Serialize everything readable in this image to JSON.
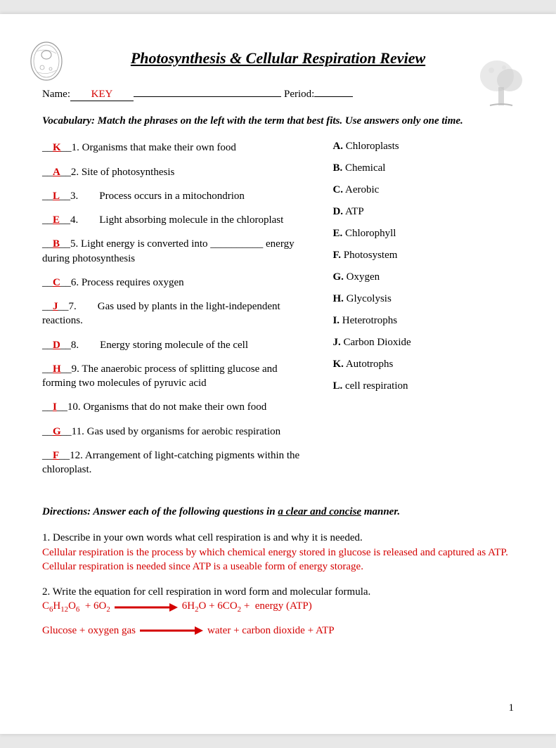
{
  "title": "Photosynthesis & Cellular Respiration Review",
  "header": {
    "name_label": "Name:",
    "key_text": "KEY",
    "period_label": "Period:"
  },
  "vocab_instructions": "Vocabulary: Match the phrases on the left with the term that best fits. Use answers only one time.",
  "questions": [
    {
      "ans": "K",
      "num": "1.",
      "text": "Organisms that make their own food"
    },
    {
      "ans": "A",
      "num": "2.",
      "text": "Site of photosynthesis"
    },
    {
      "ans": "L",
      "num": "3.",
      "text": "Process occurs in a mitochondrion",
      "indent": true
    },
    {
      "ans": "E",
      "num": "4.",
      "text": "Light absorbing molecule in the chloroplast",
      "indent": true
    },
    {
      "ans": "B",
      "num": "5.",
      "text": "Light energy is converted into __________ energy during photosynthesis"
    },
    {
      "ans": "C",
      "num": "6.",
      "text": "Process requires oxygen"
    },
    {
      "ans": "J",
      "num": "7.",
      "text": "Gas used by plants in the light-independent reactions.",
      "indent": true
    },
    {
      "ans": "D",
      "num": "8.",
      "text": "Energy storing molecule of the cell",
      "indent": true
    },
    {
      "ans": "H",
      "num": "9.",
      "text": "The anaerobic process of splitting glucose and forming two molecules of pyruvic acid"
    },
    {
      "ans": "I",
      "num": "10.",
      "text": "Organisms that do not make their own food"
    },
    {
      "ans": "G",
      "num": "11.",
      "text": "Gas used by organisms for aerobic respiration"
    },
    {
      "ans": "F",
      "num": "12.",
      "text": "Arrangement of light-catching pigments within the chloroplast."
    }
  ],
  "terms": [
    {
      "letter": "A.",
      "text": "Chloroplasts"
    },
    {
      "letter": "B.",
      "text": "Chemical"
    },
    {
      "letter": "C.",
      "text": "Aerobic"
    },
    {
      "letter": "D.",
      "text": "ATP"
    },
    {
      "letter": "E.",
      "text": "Chlorophyll"
    },
    {
      "letter": "F.",
      "text": "Photosystem"
    },
    {
      "letter": "G.",
      "text": "Oxygen"
    },
    {
      "letter": "H.",
      "text": "Glycolysis"
    },
    {
      "letter": "I.",
      "text": "Heterotrophs"
    },
    {
      "letter": "J.",
      "text": "Carbon Dioxide"
    },
    {
      "letter": "K.",
      "text": "Autotrophs"
    },
    {
      "letter": "L.",
      "text": "cell respiration"
    }
  ],
  "directions_text_pre": "Directions: Answer each of the following questions in ",
  "directions_text_ul": "a clear and concise",
  "directions_text_post": " manner.",
  "qa": {
    "q1_prompt": "1. Describe in your own words what cell respiration is and why it is needed.",
    "q1_answer": "Cellular respiration is the process by which chemical energy stored in glucose is released and captured as ATP.  Cellular respiration is needed since ATP is a useable form of energy storage.",
    "q2_prompt": "2. Write the equation for cell respiration in word form and molecular formula.",
    "eq1_left": "C₆H₁₂O₆  + 6O₂",
    "eq1_right": "6H₂O + 6CO₂ +  energy (ATP)",
    "eq2_left": "Glucose + oxygen gas",
    "eq2_right": "water + carbon dioxide + ATP"
  },
  "page_number": "1",
  "colors": {
    "answer_red": "#d40000",
    "arrow_red": "#d40000",
    "text_black": "#000000",
    "page_bg": "#ffffff"
  }
}
